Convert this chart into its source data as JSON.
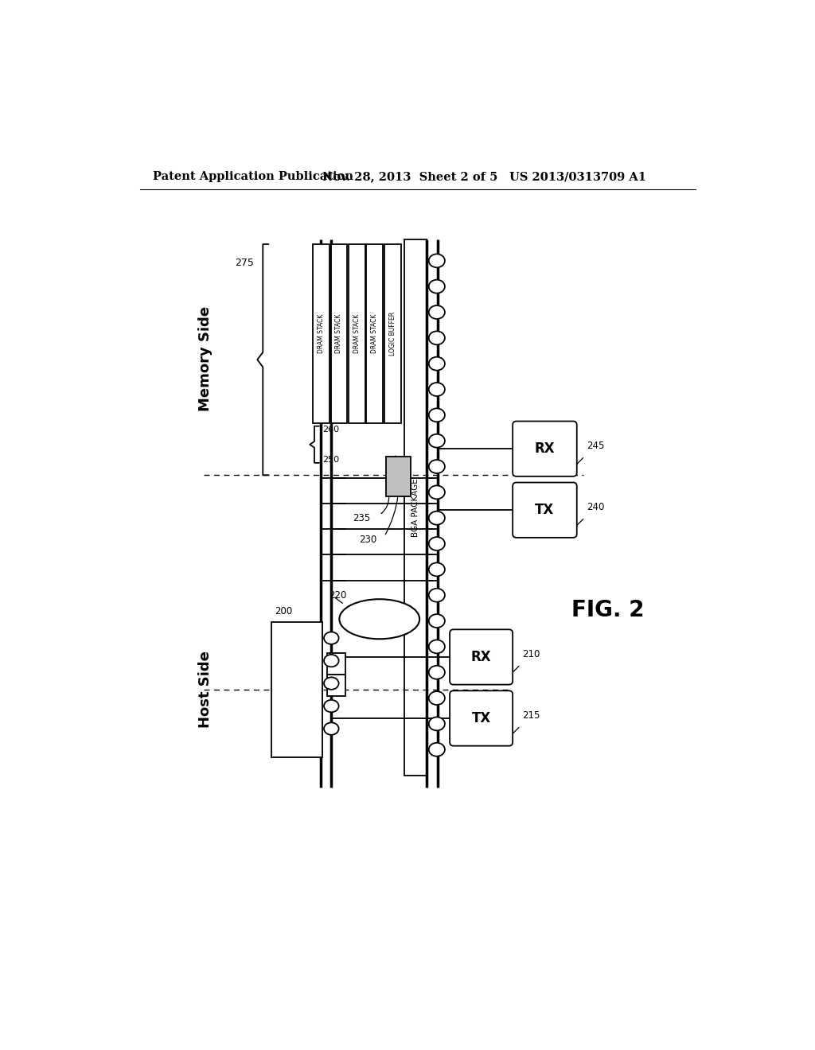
{
  "header_left": "Patent Application Publication",
  "header_mid": "Nov. 28, 2013  Sheet 2 of 5",
  "header_right": "US 2013/0313709 A1",
  "fig_label": "FIG. 2",
  "bg_color": "#ffffff",
  "line_color": "#000000",
  "dram_labels": [
    "DRAM STACK",
    "DRAM STACK",
    "DRAM STACK",
    "DRAM STACK",
    "LOGIC BUFFER"
  ],
  "labels": {
    "memory_side": "Memory Side",
    "host_side": "Host Side",
    "bga_package": "BGA PACKAGE",
    "rx_245": "RX",
    "tx_240": "TX",
    "rx_210": "RX",
    "tx_215": "TX",
    "n275": "275",
    "n260": "260",
    "n250": "250",
    "n235": "235",
    "n230": "230",
    "n220": "220",
    "n200": "200",
    "n245": "245",
    "n240": "240",
    "n210": "210",
    "n215": "215"
  }
}
